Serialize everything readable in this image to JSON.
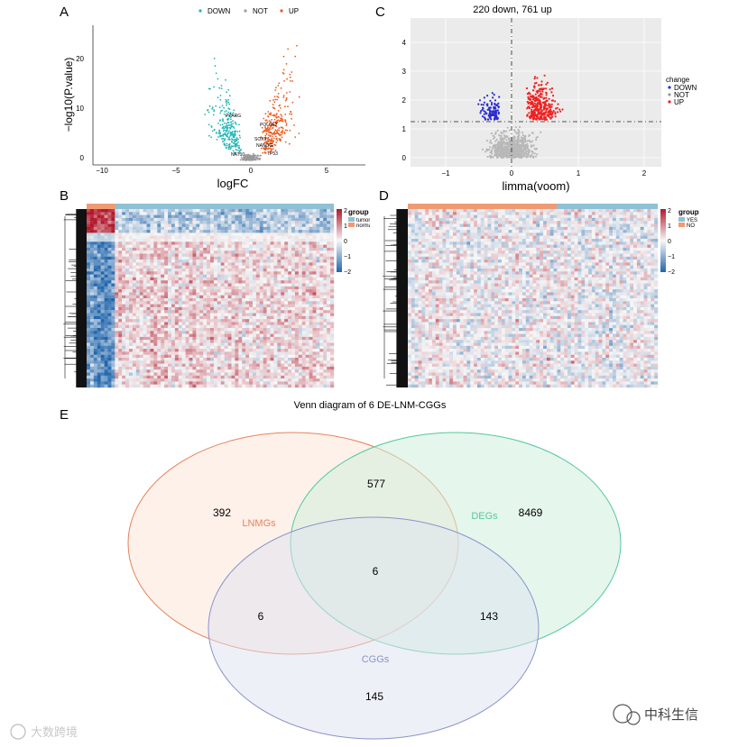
{
  "colors": {
    "down_teal": "#1fb5b5",
    "up_orange": "#ee5a1f",
    "not_gray": "#9a9a9a",
    "down_blue": "#2c2ccf",
    "up_red": "#ef2020",
    "heat_red": "#b2182b",
    "heat_white": "#f7f7f7",
    "heat_blue": "#2166ac",
    "tumor": "#8ec1d6",
    "normal": "#f09a72",
    "lnm_orange": "#e8825a",
    "deg_green": "#55c79e",
    "cgg_purple": "#8a94c8"
  },
  "panel_a": {
    "letter": "A",
    "legend": [
      "DOWN",
      "NOT",
      "UP"
    ],
    "xlabel": "logFC",
    "ylabel": "−log10(P.value)",
    "x_ticks": [
      "−10",
      "−5",
      "0",
      "5"
    ],
    "y_ticks": [
      "0",
      "10",
      "20"
    ],
    "labels": [
      "PPARG",
      "POU3F2",
      "SOX9",
      "NANOG",
      "TP53",
      "NAT10"
    ]
  },
  "panel_c": {
    "letter": "C",
    "title": "220 down, 761 up",
    "xlabel": "limma(voom)",
    "x_ticks": [
      "−1",
      "0",
      "1",
      "2"
    ],
    "y_ticks": [
      "0",
      "1",
      "2",
      "3",
      "4"
    ],
    "legend_title": "change",
    "legend": [
      "DOWN",
      "NOT",
      "UP"
    ]
  },
  "panel_b": {
    "letter": "B",
    "legend_title": "group",
    "legend": [
      "tumor",
      "normal"
    ],
    "scale": [
      "2",
      "1",
      "0",
      "−1",
      "−2"
    ]
  },
  "panel_d": {
    "letter": "D",
    "legend_title": "group",
    "legend": [
      "YES",
      "NO"
    ],
    "scale": [
      "2",
      "1",
      "0",
      "−1",
      "−2"
    ]
  },
  "panel_e": {
    "letter": "E",
    "title": "Venn diagram of 6 DE-LNM-CGGs",
    "sets": [
      "LNMGs",
      "DEGs",
      "CGGs"
    ],
    "counts": {
      "lnm_only": "392",
      "lnm_deg": "577",
      "deg_only": "8469",
      "all_three": "6",
      "lnm_cgg": "6",
      "deg_cgg": "143",
      "cgg_only": "145"
    }
  },
  "watermark_left": "大数跨境",
  "watermark_right": "中科生信"
}
